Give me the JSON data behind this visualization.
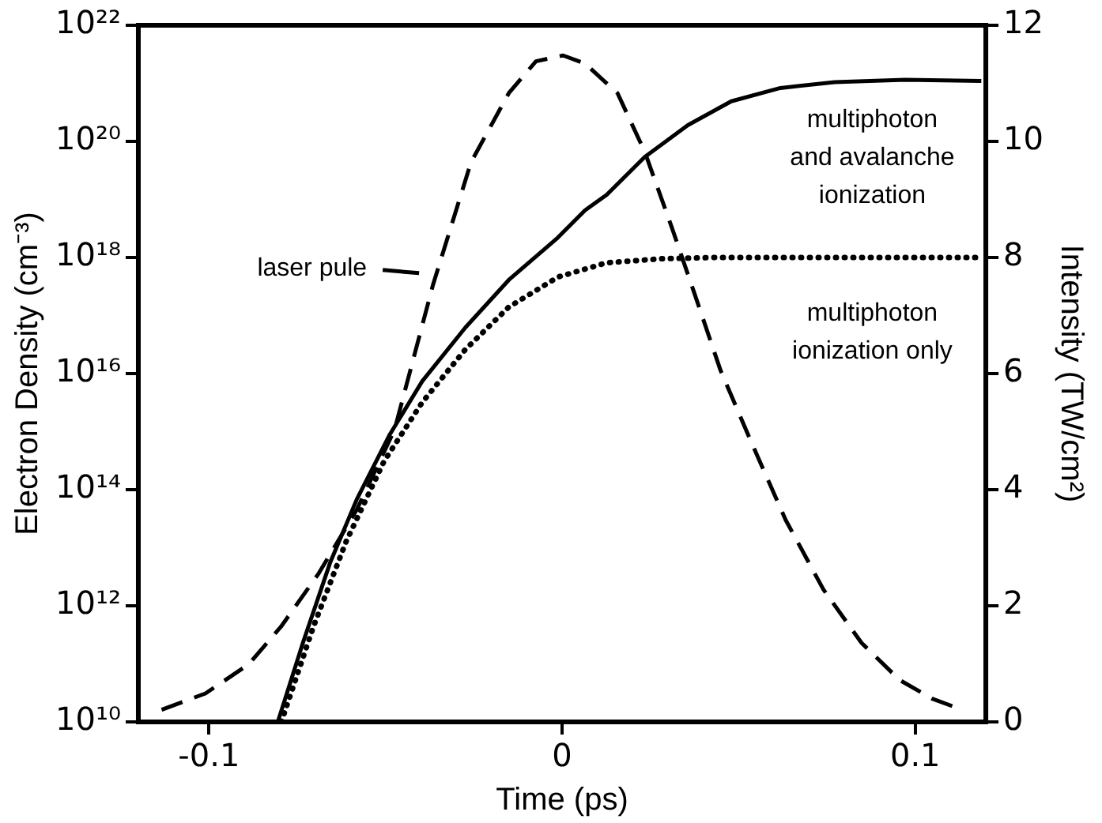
{
  "chart_data": {
    "type": "line",
    "xlabel": "Time (ps)",
    "ylabel": "Electron Density (cm⁻³)",
    "y2label": "Intensity (TW/cm²)",
    "log": "y",
    "xlim": [
      -0.12,
      0.12
    ],
    "xticks": [
      -0.1,
      0,
      0.1
    ],
    "ylim": [
      10000000000.0,
      1e+22
    ],
    "yticks": [
      {
        "value": 10000000000.0,
        "label": "10¹⁰"
      },
      {
        "value": 1000000000000.0,
        "label": "10¹²"
      },
      {
        "value": 100000000000000.0,
        "label": "10¹⁴"
      },
      {
        "value": 1e+16,
        "label": "10¹⁶"
      },
      {
        "value": 1e+18,
        "label": "10¹⁸"
      },
      {
        "value": 1e+20,
        "label": "10²⁰"
      },
      {
        "value": 1e+22,
        "label": "10²²"
      }
    ],
    "y2lim": [
      0,
      12
    ],
    "y2ticks": [
      0,
      2,
      4,
      6,
      8,
      10,
      12
    ],
    "grid": false,
    "marker": "none",
    "series": [
      {
        "color": "#000000",
        "line_style": "dashed",
        "axis": "y2",
        "x": [
          -0.1134,
          -0.101,
          -0.0888,
          -0.0796,
          -0.0689,
          -0.0581,
          -0.0474,
          -0.0366,
          -0.0258,
          -0.0151,
          -0.0074,
          0.0003,
          0.0065,
          0.0157,
          0.0234,
          0.031,
          0.0372,
          0.0449,
          0.054,
          0.0633,
          0.074,
          0.0848,
          0.0956,
          0.1048,
          0.111
        ],
        "values": [
          0.21,
          0.49,
          0.99,
          1.64,
          2.56,
          3.66,
          5.04,
          7.52,
          9.64,
          10.83,
          11.38,
          11.48,
          11.34,
          10.83,
          9.82,
          8.53,
          7.43,
          6.05,
          4.76,
          3.48,
          2.28,
          1.36,
          0.72,
          0.4,
          0.26
        ]
      },
      {
        "color": "#000000",
        "line_style": "solid",
        "x": [
          -0.0805,
          -0.0734,
          -0.0657,
          -0.0581,
          -0.0488,
          -0.0396,
          -0.0274,
          -0.0151,
          -0.0012,
          0.0065,
          0.0126,
          0.0234,
          0.0356,
          0.0479,
          0.0618,
          0.0772,
          0.0971,
          0.1187
        ],
        "values": [
          10000000000.0,
          230000000000.0,
          5500000000000.0,
          69000000000000.0,
          890000000000000.0,
          7400000000000000.0,
          6.2e+16,
          4.1e+17,
          2.2e+18,
          6.5e+18,
          1.2e+19,
          5.4e+19,
          1.9e+20,
          4.9e+20,
          8.3e+20,
          1.05e+21,
          1.15e+21,
          1.1e+21
        ]
      },
      {
        "color": "#000000",
        "line_style": "dotted",
        "x": [
          -0.0795,
          -0.0704,
          -0.0611,
          -0.0504,
          -0.0396,
          -0.0274,
          -0.0151,
          -0.0012,
          0.0126,
          0.028,
          0.0433,
          0.1187
        ],
        "values": [
          10000000000.0,
          440000000000.0,
          13000000000000.0,
          310000000000000.0,
          3200000000000000.0,
          2.6e+16,
          1.4e+17,
          4.6e+17,
          8.1e+17,
          9.5e+17,
          1e+18,
          1e+18
        ]
      }
    ],
    "annotations": [
      "laser pule",
      "multiphoton\nand avalanche\nionization",
      "multiphoton\nionization only"
    ]
  }
}
